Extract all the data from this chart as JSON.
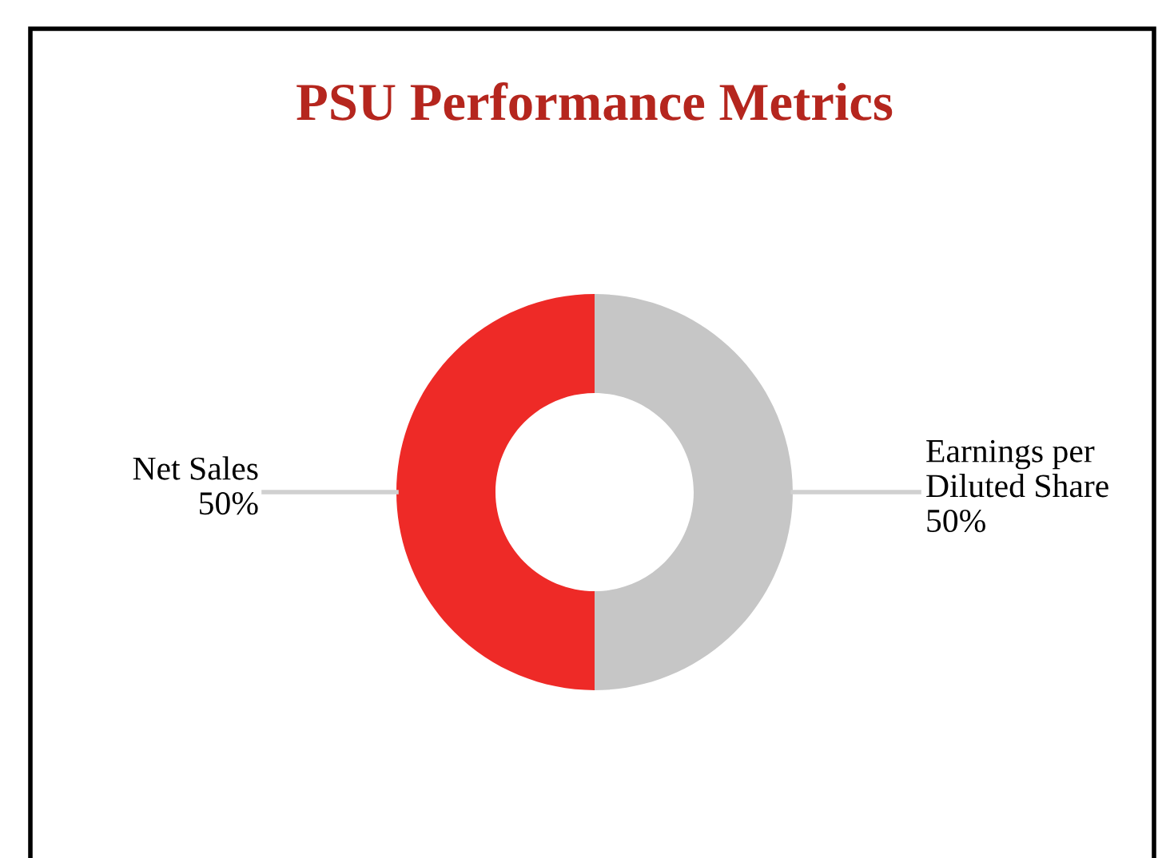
{
  "chart_data": {
    "type": "donut",
    "title": "PSU Performance Metrics",
    "categories": [
      "Net Sales",
      "Earnings per\nDiluted Share"
    ],
    "values": [
      50,
      50
    ],
    "colors": [
      "#ee2a27",
      "#c6c6c6"
    ],
    "value_labels": [
      "50%",
      "50%"
    ]
  }
}
